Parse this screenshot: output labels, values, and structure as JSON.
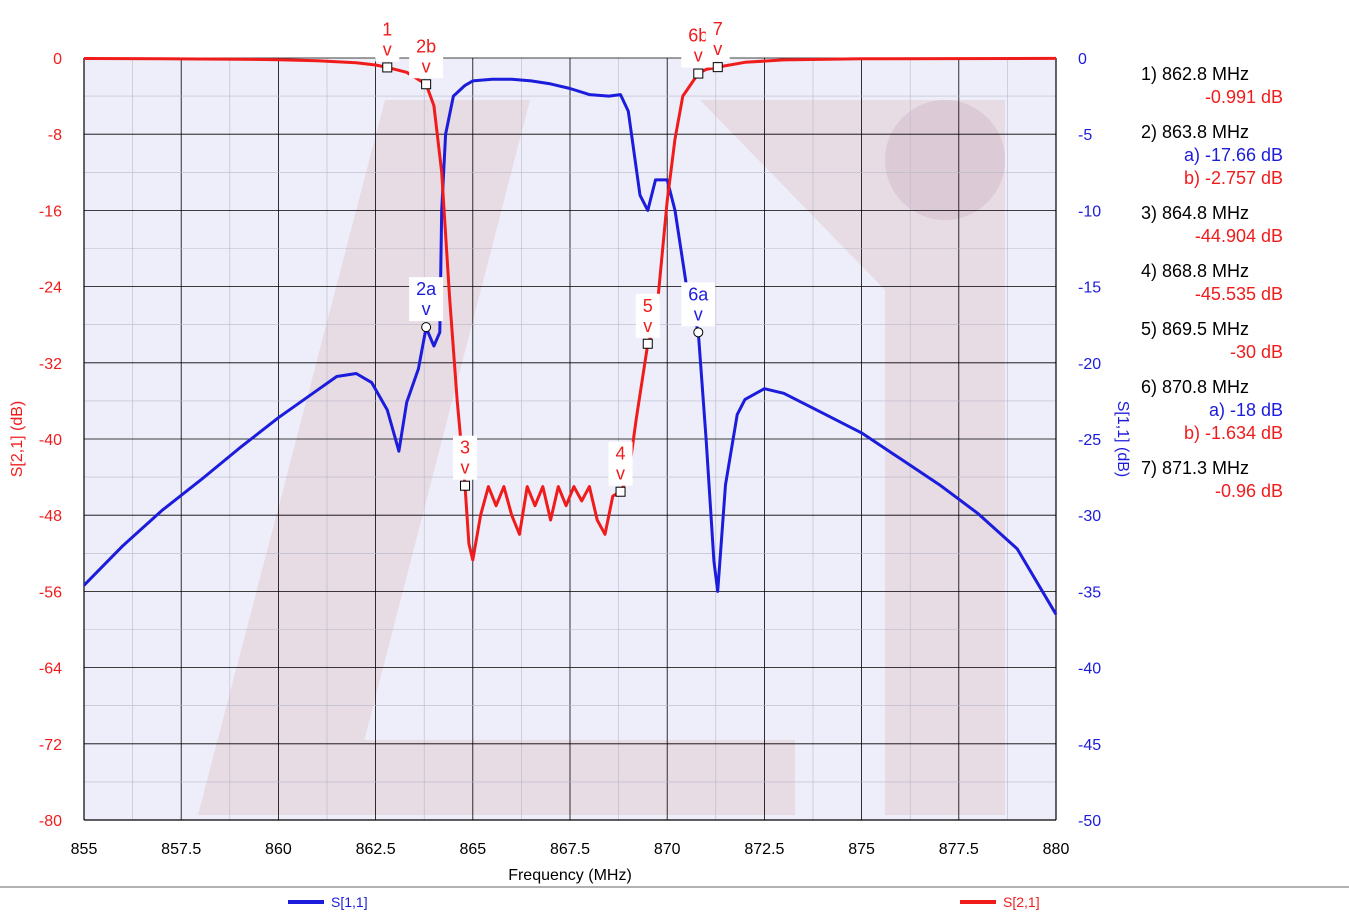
{
  "chart_data": {
    "type": "line",
    "xlabel": "Frequency (MHz)",
    "y_left_label": "S[2,1] (dB)",
    "y_right_label": "S[1,1] (dB)",
    "xlim": [
      855,
      880
    ],
    "ylim_left": [
      -80,
      0
    ],
    "ylim_right": [
      -50,
      0
    ],
    "x_ticks": [
      "855",
      "857.5",
      "860",
      "862.5",
      "865",
      "867.5",
      "870",
      "872.5",
      "875",
      "877.5",
      "880"
    ],
    "y_left_ticks": [
      "0",
      "-8",
      "-16",
      "-24",
      "-32",
      "-40",
      "-48",
      "-56",
      "-64",
      "-72",
      "-80"
    ],
    "y_right_ticks": [
      "0",
      "-5",
      "-10",
      "-15",
      "-20",
      "-25",
      "-30",
      "-35",
      "-40",
      "-45",
      "-50"
    ],
    "grid": true,
    "colors": {
      "s11": "#1c1cdc",
      "s21": "#f01c1c",
      "plot_bg": "#eeeefa",
      "grid": "#000000",
      "watermark": "#e7dbe4"
    },
    "series": [
      {
        "name": "S[1,1]",
        "axis": "right",
        "x": [
          855,
          856,
          857,
          858,
          859,
          860,
          861,
          861.5,
          862,
          862.4,
          862.8,
          863.1,
          863.3,
          863.6,
          863.8,
          864,
          864.15,
          864.2,
          864.3,
          864.5,
          864.8,
          865,
          865.5,
          866,
          866.5,
          867,
          867.5,
          868,
          868.5,
          868.8,
          869,
          869.3,
          869.5,
          869.7,
          870,
          870.2,
          870.5,
          870.8,
          871,
          871.2,
          871.3,
          871.5,
          871.8,
          872,
          872.5,
          873,
          874,
          875,
          876,
          877,
          878,
          879,
          880
        ],
        "y": [
          -34.6,
          -32,
          -29.7,
          -27.7,
          -25.6,
          -23.6,
          -21.8,
          -20.9,
          -20.7,
          -21.3,
          -23.1,
          -25.8,
          -22.6,
          -20.4,
          -17.7,
          -18.9,
          -18,
          -10,
          -5,
          -2.5,
          -1.8,
          -1.5,
          -1.4,
          -1.4,
          -1.5,
          -1.7,
          -2,
          -2.4,
          -2.5,
          -2.4,
          -3.5,
          -9,
          -10,
          -8,
          -8,
          -10,
          -15,
          -18,
          -25,
          -33,
          -35,
          -28,
          -23.4,
          -22.4,
          -21.7,
          -22,
          -23.3,
          -24.6,
          -26.3,
          -28,
          -29.9,
          -32.2,
          -36.5
        ]
      },
      {
        "name": "S[2,1]",
        "axis": "left",
        "x": [
          855,
          857,
          859,
          860,
          861,
          862,
          862.5,
          862.8,
          863.3,
          863.8,
          864,
          864.2,
          864.4,
          864.6,
          864.8,
          864.9,
          865,
          865.2,
          865.4,
          865.6,
          865.8,
          866,
          866.2,
          866.4,
          866.6,
          866.8,
          867,
          867.2,
          867.4,
          867.6,
          867.8,
          868,
          868.2,
          868.4,
          868.6,
          868.8,
          869,
          869.2,
          869.5,
          869.7,
          870,
          870.2,
          870.4,
          870.8,
          871,
          871.3,
          872,
          873,
          875,
          880
        ],
        "y": [
          -0.05,
          -0.08,
          -0.13,
          -0.18,
          -0.28,
          -0.5,
          -0.73,
          -0.99,
          -1.5,
          -2.76,
          -5,
          -12,
          -25,
          -36,
          -44.9,
          -51,
          -52.7,
          -48,
          -45,
          -47,
          -45,
          -48,
          -50,
          -45,
          -47,
          -45,
          -48.5,
          -45,
          -47,
          -45,
          -46.5,
          -45,
          -48.5,
          -50,
          -46,
          -45.5,
          -44,
          -38,
          -30,
          -28,
          -15,
          -8.5,
          -4,
          -1.63,
          -1.2,
          -0.96,
          -0.45,
          -0.2,
          -0.08,
          -0.04
        ]
      }
    ],
    "markers": [
      {
        "label": "1",
        "x": 862.8,
        "y": -0.991,
        "axis": "left",
        "color": "#f01c1c",
        "shape": "square"
      },
      {
        "label": "2b",
        "x": 863.8,
        "y": -2.757,
        "axis": "left",
        "color": "#f01c1c",
        "shape": "square"
      },
      {
        "label": "2a",
        "x": 863.8,
        "y": -17.66,
        "axis": "right",
        "color": "#1c1cdc",
        "shape": "circle"
      },
      {
        "label": "3",
        "x": 864.8,
        "y": -44.904,
        "axis": "left",
        "color": "#f01c1c",
        "shape": "square"
      },
      {
        "label": "4",
        "x": 868.8,
        "y": -45.535,
        "axis": "left",
        "color": "#f01c1c",
        "shape": "square"
      },
      {
        "label": "5",
        "x": 869.5,
        "y": -30,
        "axis": "left",
        "color": "#f01c1c",
        "shape": "square"
      },
      {
        "label": "6a",
        "x": 870.8,
        "y": -18,
        "axis": "right",
        "color": "#1c1cdc",
        "shape": "circle"
      },
      {
        "label": "6b",
        "x": 870.8,
        "y": -1.634,
        "axis": "left",
        "color": "#f01c1c",
        "shape": "square"
      },
      {
        "label": "7",
        "x": 871.3,
        "y": -0.96,
        "axis": "left",
        "color": "#f01c1c",
        "shape": "square"
      }
    ],
    "marker_caret": "v",
    "annotations": [
      {
        "text": "1) 862.8 MHz",
        "color": "#000000"
      },
      {
        "text": "-0.991 dB",
        "color": "#f01c1c"
      },
      {
        "text": "2) 863.8 MHz",
        "color": "#000000"
      },
      {
        "text": "a) -17.66 dB",
        "color": "#1c1cdc"
      },
      {
        "text": "b) -2.757 dB",
        "color": "#f01c1c"
      },
      {
        "text": "3) 864.8 MHz",
        "color": "#000000"
      },
      {
        "text": "-44.904 dB",
        "color": "#f01c1c"
      },
      {
        "text": "4) 868.8 MHz",
        "color": "#000000"
      },
      {
        "text": "-45.535 dB",
        "color": "#f01c1c"
      },
      {
        "text": "5) 869.5 MHz",
        "color": "#000000"
      },
      {
        "text": "-30 dB",
        "color": "#f01c1c"
      },
      {
        "text": "6) 870.8 MHz",
        "color": "#000000"
      },
      {
        "text": "a) -18 dB",
        "color": "#1c1cdc"
      },
      {
        "text": "b) -1.634 dB",
        "color": "#f01c1c"
      },
      {
        "text": "7) 871.3 MHz",
        "color": "#000000"
      },
      {
        "text": "-0.96 dB",
        "color": "#f01c1c"
      }
    ],
    "legend": {
      "placement": "bottom",
      "items": [
        "S[1,1]",
        "S[2,1]"
      ]
    }
  }
}
